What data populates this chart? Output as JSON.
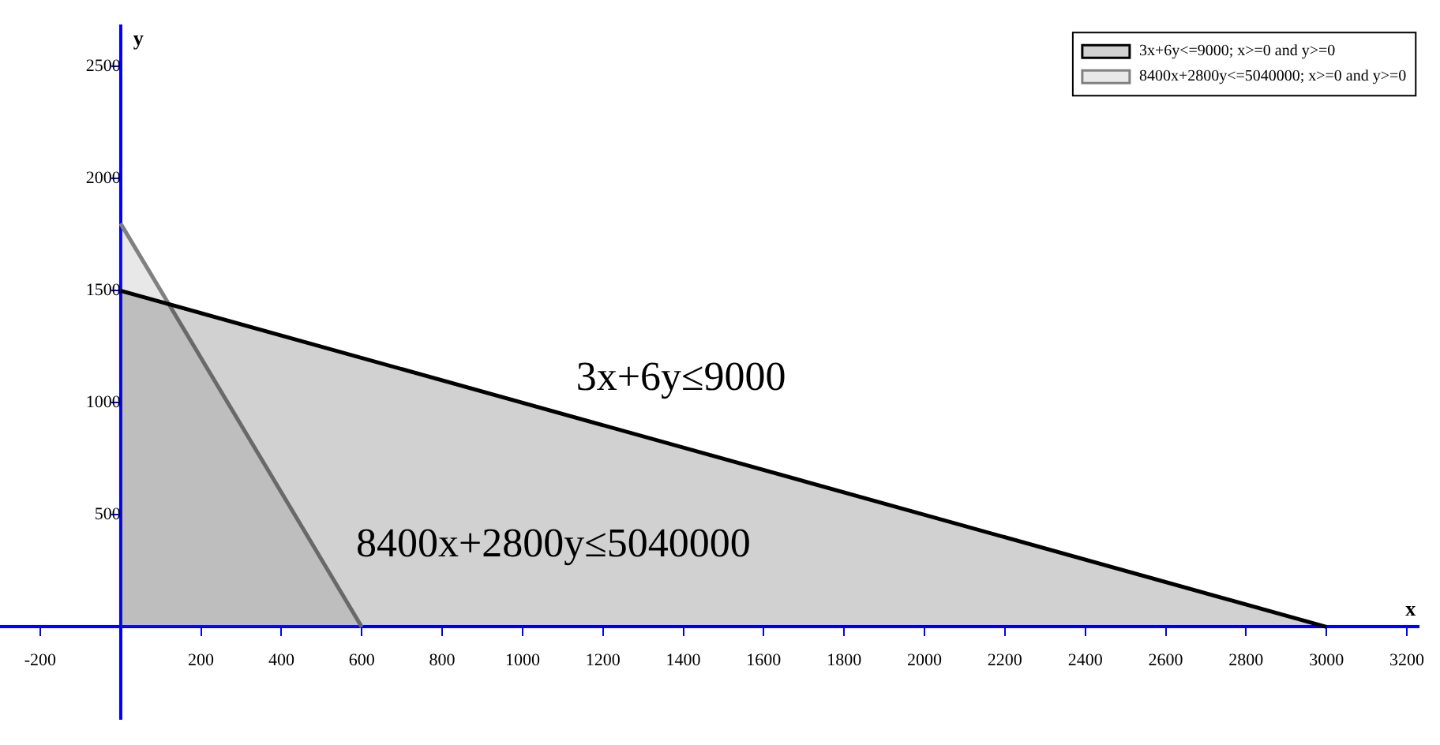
{
  "chart_data": {
    "type": "area",
    "xlabel": "x",
    "ylabel": "y",
    "xlim": [
      -300,
      3230
    ],
    "ylim": [
      -410,
      2680
    ],
    "xticks": [
      -200,
      200,
      400,
      600,
      800,
      1000,
      1200,
      1400,
      1600,
      1800,
      2000,
      2200,
      2400,
      2600,
      2800,
      3000,
      3200
    ],
    "yticks": [
      500,
      1000,
      1500,
      2000,
      2500
    ],
    "series": [
      {
        "name": "3x+6y<=9000; x>=0 and y>=0",
        "color": "#000000",
        "x": [
          0,
          3000
        ],
        "values": [
          1500,
          0
        ]
      },
      {
        "name": "8400x+2800y<=5040000; x>=0 and y>=0",
        "color": "#808080",
        "x": [
          0,
          600
        ],
        "values": [
          1800,
          0
        ]
      }
    ],
    "annotations": [
      "3x+6y≤9000",
      "8400x+2800y≤5040000"
    ],
    "legend": "top right",
    "grid": false
  }
}
